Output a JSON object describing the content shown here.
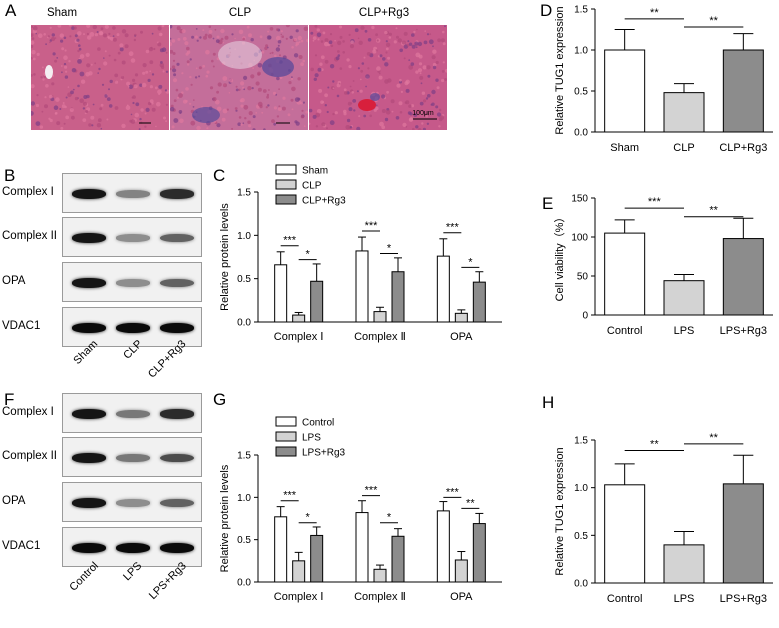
{
  "panels": {
    "A": "A",
    "B": "B",
    "C": "C",
    "D": "D",
    "E": "E",
    "F": "F",
    "G": "G",
    "H": "H"
  },
  "histology": {
    "labels": [
      "Sham",
      "CLP",
      "CLP+Rg3"
    ],
    "scale_bar": "100μm",
    "colors": {
      "tissue": "#c4577f",
      "infiltrate": "#5a4a9a",
      "blood": "#d81f3c"
    }
  },
  "blot_B": {
    "proteins": [
      "Complex I",
      "Complex II",
      "OPA",
      "VDAC1"
    ],
    "lanes": [
      "Sham",
      "CLP",
      "CLP+Rg3"
    ],
    "intensity": [
      [
        0.95,
        0.45,
        0.85
      ],
      [
        0.95,
        0.4,
        0.6
      ],
      [
        0.95,
        0.4,
        0.6
      ],
      [
        1.0,
        1.0,
        1.0
      ]
    ]
  },
  "blot_F": {
    "proteins": [
      "Complex I",
      "Complex II",
      "OPA",
      "VDAC1"
    ],
    "lanes": [
      "Control",
      "LPS",
      "LPS+Rg3"
    ],
    "intensity": [
      [
        0.95,
        0.5,
        0.85
      ],
      [
        0.95,
        0.5,
        0.7
      ],
      [
        0.95,
        0.4,
        0.6
      ],
      [
        1.0,
        1.0,
        1.0
      ]
    ]
  },
  "chart_data": [
    {
      "id": "C",
      "type": "bar",
      "ylabel": "Relative protein levels",
      "ylim": [
        0,
        1.5
      ],
      "yticks": [
        "0.0",
        "0.5",
        "1.0",
        "1.5"
      ],
      "categories": [
        "Complex Ⅰ",
        "Complex Ⅱ",
        "OPA"
      ],
      "legend_position": "top-left",
      "series": [
        {
          "name": "Sham",
          "color": "#ffffff",
          "values": [
            0.66,
            0.82,
            0.76
          ],
          "errors": [
            0.15,
            0.16,
            0.2
          ]
        },
        {
          "name": "CLP",
          "color": "#d3d3d3",
          "values": [
            0.08,
            0.12,
            0.1
          ],
          "errors": [
            0.03,
            0.05,
            0.04
          ]
        },
        {
          "name": "CLP+Rg3",
          "color": "#8c8c8c",
          "values": [
            0.47,
            0.58,
            0.46
          ],
          "errors": [
            0.2,
            0.16,
            0.12
          ]
        }
      ],
      "significance": [
        {
          "cat": 0,
          "from": 0,
          "to": 1,
          "label": "***",
          "y": 0.88
        },
        {
          "cat": 0,
          "from": 1,
          "to": 2,
          "label": "*",
          "y": 0.72
        },
        {
          "cat": 1,
          "from": 0,
          "to": 1,
          "label": "***",
          "y": 1.05
        },
        {
          "cat": 1,
          "from": 1,
          "to": 2,
          "label": "*",
          "y": 0.79
        },
        {
          "cat": 2,
          "from": 0,
          "to": 1,
          "label": "***",
          "y": 1.03
        },
        {
          "cat": 2,
          "from": 1,
          "to": 2,
          "label": "*",
          "y": 0.63
        }
      ]
    },
    {
      "id": "G",
      "type": "bar",
      "ylabel": "Relative protein levels",
      "ylim": [
        0,
        1.5
      ],
      "yticks": [
        "0.0",
        "0.5",
        "1.0",
        "1.5"
      ],
      "categories": [
        "Complex Ⅰ",
        "Complex Ⅱ",
        "OPA"
      ],
      "legend_position": "top-left",
      "series": [
        {
          "name": "Control",
          "color": "#ffffff",
          "values": [
            0.77,
            0.82,
            0.84
          ],
          "errors": [
            0.12,
            0.14,
            0.11
          ]
        },
        {
          "name": "LPS",
          "color": "#d3d3d3",
          "values": [
            0.25,
            0.15,
            0.26
          ],
          "errors": [
            0.1,
            0.05,
            0.1
          ]
        },
        {
          "name": "LPS+Rg3",
          "color": "#8c8c8c",
          "values": [
            0.55,
            0.54,
            0.69
          ],
          "errors": [
            0.1,
            0.09,
            0.12
          ]
        }
      ],
      "significance": [
        {
          "cat": 0,
          "from": 0,
          "to": 1,
          "label": "***",
          "y": 0.96
        },
        {
          "cat": 0,
          "from": 1,
          "to": 2,
          "label": "*",
          "y": 0.7
        },
        {
          "cat": 1,
          "from": 0,
          "to": 1,
          "label": "***",
          "y": 1.02
        },
        {
          "cat": 1,
          "from": 1,
          "to": 2,
          "label": "*",
          "y": 0.7
        },
        {
          "cat": 2,
          "from": 0,
          "to": 1,
          "label": "***",
          "y": 1.0
        },
        {
          "cat": 2,
          "from": 1,
          "to": 2,
          "label": "**",
          "y": 0.87
        }
      ]
    },
    {
      "id": "D",
      "type": "bar",
      "ylabel": "Relative TUG1 expression",
      "ylim": [
        0,
        1.5
      ],
      "yticks": [
        "0.0",
        "0.5",
        "1.0",
        "1.5"
      ],
      "categories": [
        "Sham",
        "CLP",
        "CLP+Rg3"
      ],
      "colors": [
        "#ffffff",
        "#d3d3d3",
        "#8c8c8c"
      ],
      "values": [
        1.0,
        0.48,
        1.0
      ],
      "errors": [
        0.25,
        0.11,
        0.2
      ],
      "significance": [
        {
          "from": 0,
          "to": 1,
          "label": "**",
          "y": 1.38
        },
        {
          "from": 1,
          "to": 2,
          "label": "**",
          "y": 1.28
        }
      ]
    },
    {
      "id": "E",
      "type": "bar",
      "ylabel": "Cell viability（%）",
      "ylim": [
        0,
        150
      ],
      "yticks": [
        "0",
        "50",
        "100",
        "150"
      ],
      "categories": [
        "Control",
        "LPS",
        "LPS+Rg3"
      ],
      "colors": [
        "#ffffff",
        "#d3d3d3",
        "#8c8c8c"
      ],
      "values": [
        105,
        44,
        98
      ],
      "errors": [
        17,
        8,
        26
      ],
      "significance": [
        {
          "from": 0,
          "to": 1,
          "label": "***",
          "y": 137
        },
        {
          "from": 1,
          "to": 2,
          "label": "**",
          "y": 126
        }
      ]
    },
    {
      "id": "H",
      "type": "bar",
      "ylabel": "Relative TUG1 expression",
      "ylim": [
        0,
        1.5
      ],
      "yticks": [
        "0.0",
        "0.5",
        "1.0",
        "1.5"
      ],
      "categories": [
        "Control",
        "LPS",
        "LPS+Rg3"
      ],
      "colors": [
        "#ffffff",
        "#d3d3d3",
        "#8c8c8c"
      ],
      "values": [
        1.03,
        0.4,
        1.04
      ],
      "errors": [
        0.22,
        0.14,
        0.3
      ],
      "significance": [
        {
          "from": 0,
          "to": 1,
          "label": "**",
          "y": 1.39
        },
        {
          "from": 1,
          "to": 2,
          "label": "**",
          "y": 1.46
        }
      ]
    }
  ]
}
